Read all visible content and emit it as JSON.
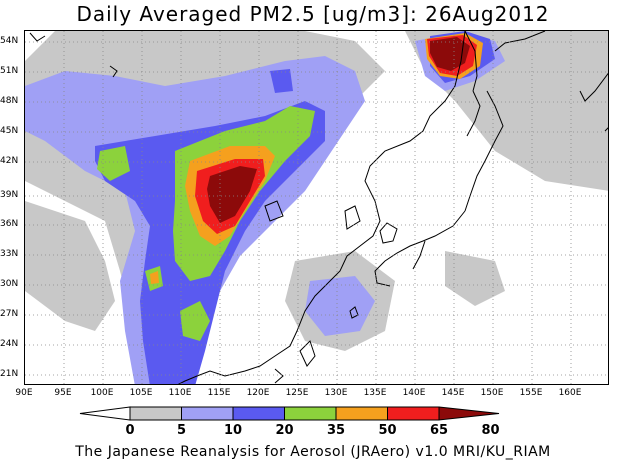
{
  "title": "Daily Averaged PM2.5 [ug/m3]: 26Aug2012",
  "footer": "The Japanese Reanalysis for Aerosol (JRAero) v1.0 MRI/KU_RIAM",
  "lat_labels": [
    "54N",
    "51N",
    "48N",
    "45N",
    "42N",
    "39N",
    "36N",
    "33N",
    "30N",
    "27N",
    "24N",
    "21N"
  ],
  "lon_labels": [
    "90E",
    "95E",
    "100E",
    "105E",
    "110E",
    "115E",
    "120E",
    "125E",
    "130E",
    "135E",
    "140E",
    "145E",
    "150E",
    "155E",
    "160E"
  ],
  "colorbar": {
    "ticks": [
      "0",
      "5",
      "10",
      "20",
      "35",
      "50",
      "65",
      "80"
    ],
    "colors": [
      "#ffffff",
      "#c8c8c8",
      "#a0a0f5",
      "#5a5af0",
      "#8cd23c",
      "#f5a01e",
      "#f01e1e",
      "#8c0a0a"
    ]
  },
  "map": {
    "lon_range": [
      90,
      160
    ],
    "lat_range": [
      20,
      55.5
    ],
    "grid": "dotted",
    "coastlines": true,
    "field": "PM2.5 daily average"
  }
}
